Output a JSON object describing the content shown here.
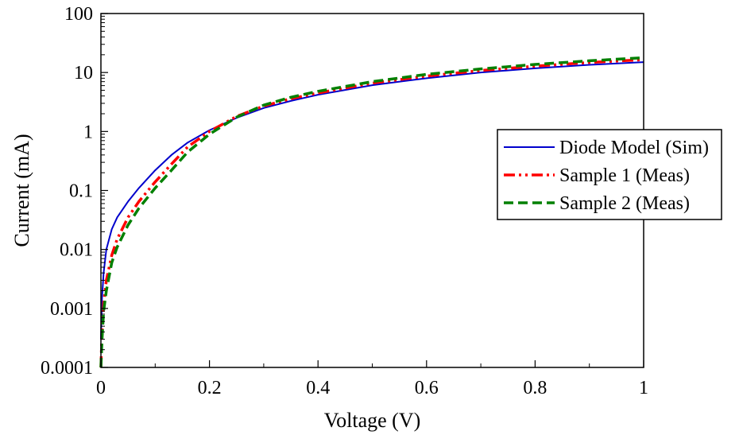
{
  "chart_data": {
    "type": "line",
    "xlabel": "Voltage (V)",
    "ylabel": "Current (mA)",
    "xlim": [
      0,
      1
    ],
    "ylim": [
      0.0001,
      100
    ],
    "yscale": "log",
    "grid": false,
    "legend_position": "right",
    "x_ticks": [
      "0",
      "0.2",
      "0.4",
      "0.6",
      "0.8",
      "1"
    ],
    "y_ticks": [
      "0.0001",
      "0.001",
      "0.01",
      "0.1",
      "1",
      "10",
      "100"
    ],
    "series": [
      {
        "name": "Diode Model (Sim)",
        "color": "#0000cc",
        "dash": "solid",
        "x": [
          0.0,
          0.002,
          0.005,
          0.01,
          0.02,
          0.03,
          0.05,
          0.07,
          0.1,
          0.13,
          0.16,
          0.2,
          0.25,
          0.3,
          0.35,
          0.4,
          0.5,
          0.6,
          0.7,
          0.8,
          0.9,
          1.0
        ],
        "y": [
          0.0003,
          0.0015,
          0.004,
          0.01,
          0.022,
          0.035,
          0.065,
          0.11,
          0.22,
          0.4,
          0.65,
          1.05,
          1.7,
          2.5,
          3.3,
          4.2,
          6.1,
          8.0,
          10.0,
          11.8,
          13.5,
          15.0
        ]
      },
      {
        "name": "Sample 1 (Meas)",
        "color": "#ff0000",
        "dash": "dashdotdot",
        "x": [
          0.0,
          0.002,
          0.005,
          0.01,
          0.02,
          0.03,
          0.05,
          0.07,
          0.1,
          0.13,
          0.16,
          0.2,
          0.25,
          0.3,
          0.35,
          0.4,
          0.5,
          0.6,
          0.7,
          0.8,
          0.9,
          1.0
        ],
        "y": [
          0.0001,
          0.0004,
          0.0012,
          0.003,
          0.008,
          0.015,
          0.035,
          0.065,
          0.14,
          0.28,
          0.55,
          1.0,
          1.8,
          2.7,
          3.6,
          4.5,
          6.6,
          8.7,
          10.8,
          12.8,
          14.8,
          16.5
        ]
      },
      {
        "name": "Sample 2 (Meas)",
        "color": "#008000",
        "dash": "dashed",
        "x": [
          0.0,
          0.002,
          0.005,
          0.01,
          0.02,
          0.03,
          0.05,
          0.07,
          0.1,
          0.13,
          0.16,
          0.2,
          0.25,
          0.3,
          0.35,
          0.4,
          0.5,
          0.6,
          0.7,
          0.8,
          0.9,
          1.0
        ],
        "y": [
          0.0001,
          0.0003,
          0.0009,
          0.002,
          0.006,
          0.011,
          0.026,
          0.05,
          0.11,
          0.22,
          0.45,
          0.9,
          1.75,
          2.8,
          3.8,
          4.8,
          7.0,
          9.3,
          11.5,
          13.7,
          15.8,
          17.8
        ]
      }
    ]
  }
}
